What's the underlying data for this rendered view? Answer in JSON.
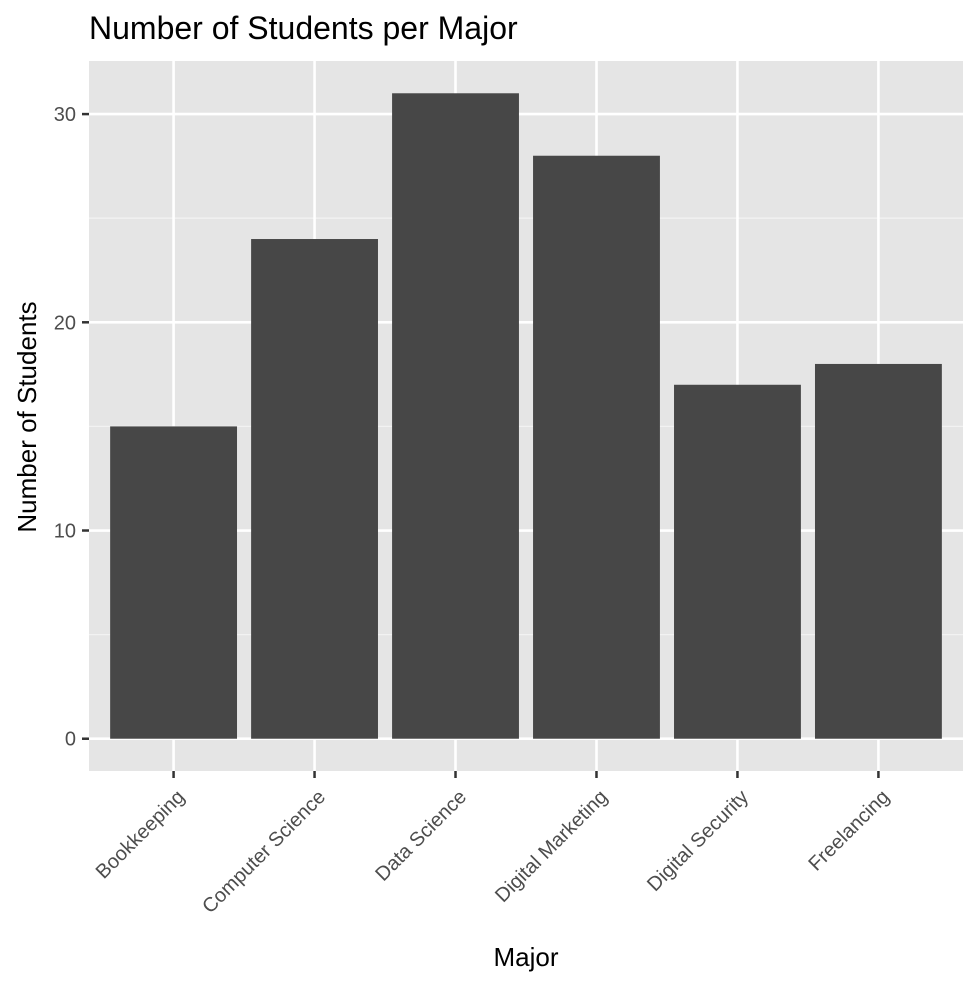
{
  "chart_data": {
    "type": "bar",
    "title": "Number of Students per Major",
    "xlabel": "Major",
    "ylabel": "Number of Students",
    "categories": [
      "Bookkeeping",
      "Computer Science",
      "Data Science",
      "Digital Marketing",
      "Digital Security",
      "Freelancing"
    ],
    "values": [
      15,
      24,
      31,
      28,
      17,
      18
    ],
    "ylim": [
      -1.55,
      32.55
    ],
    "yticks": [
      0,
      10,
      20,
      30
    ],
    "grid": true,
    "legend": "none",
    "colors": {
      "bar": "#474747",
      "panel_background": "#e5e5e5",
      "grid_major": "#ffffff",
      "grid_minor": "#f2f2f2",
      "tick_text": "#4d4d4d",
      "tick_mark": "#333333"
    }
  }
}
